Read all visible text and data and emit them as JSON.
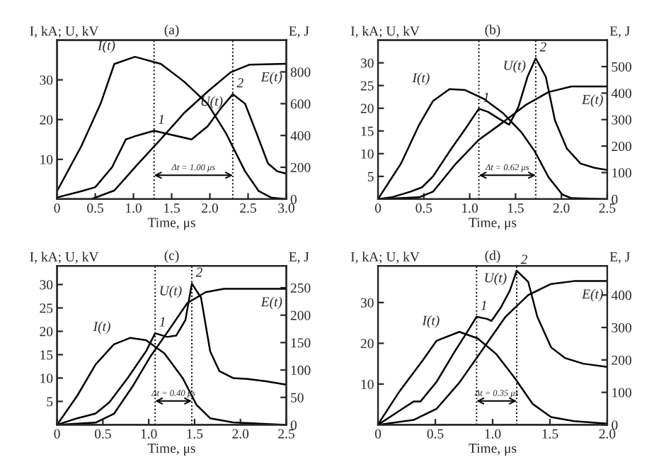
{
  "chart_data": [
    {
      "type": "line",
      "title": "(a)",
      "xlabel": "Time, μs",
      "ylabel": "I, kA; U, kV",
      "y2label": "E, J",
      "xlim": [
        0,
        3
      ],
      "xticks": [
        0,
        {
          "value": 0.5,
          "label": "0.5"
        },
        {
          "value": 1,
          "label": "1.0"
        },
        {
          "value": 1.5,
          "label": "1.5"
        },
        {
          "value": 2,
          "label": "2.0"
        },
        {
          "value": 2.5,
          "label": "2.5"
        },
        {
          "value": 3,
          "label": "3.0"
        }
      ],
      "ylim": [
        0,
        40
      ],
      "yticks": [
        10,
        20,
        30
      ],
      "y2lim": [
        0,
        1000
      ],
      "y2ticks": [
        0,
        200,
        400,
        600,
        800
      ],
      "grid": false,
      "legend": false,
      "line_style": "solid",
      "series": [
        {
          "name": "I(t)",
          "color": "#000000",
          "x": [
            0,
            0.32,
            0.57,
            0.75,
            1.02,
            1.36,
            1.66,
            1.97,
            2.21,
            2.46,
            2.64,
            2.8,
            3.0
          ],
          "values": [
            2,
            13.4,
            24,
            34,
            35.8,
            34,
            29.6,
            24,
            16.6,
            7,
            2,
            0.4,
            0
          ]
        },
        {
          "name": "U(t)",
          "color": "#000000",
          "x": [
            0,
            0.32,
            0.5,
            0.72,
            0.9,
            1.05,
            1.27,
            1.54,
            1.76,
            1.97,
            2.15,
            2.3,
            2.46,
            2.61,
            2.76,
            2.88,
            3.0
          ],
          "values": [
            0.4,
            2,
            3,
            8,
            15,
            16,
            17.2,
            16,
            15,
            18.3,
            23,
            26.4,
            24,
            16.6,
            9,
            7,
            6.4
          ]
        },
        {
          "name": "E(t)",
          "color": "#000000",
          "axis": "y2",
          "x": [
            0,
            0.45,
            0.75,
            1.05,
            1.36,
            1.66,
            1.97,
            2.27,
            2.52,
            3.0
          ],
          "values": [
            0,
            0,
            54,
            216,
            378,
            540,
            676,
            797,
            846,
            851
          ]
        }
      ],
      "ref_lines": [
        {
          "axis": "x",
          "value": 1.27,
          "line_style": "dotted",
          "color": "#000000"
        },
        {
          "axis": "x",
          "value": 2.3,
          "line_style": "dotted",
          "color": "#000000"
        }
      ],
      "annotations": [
        {
          "text": "1",
          "x": 1.27,
          "y": 17.2
        },
        {
          "text": "2",
          "x": 2.3,
          "y": 26.4
        },
        "Δt = 1.00 μs"
      ]
    },
    {
      "type": "line",
      "title": "(b)",
      "xlabel": "Time, μs",
      "ylabel": "I, kA; U, kV",
      "y2label": "E, J",
      "xlim": [
        0,
        2.5
      ],
      "xticks": [
        0,
        {
          "value": 0.5,
          "label": "0.5"
        },
        {
          "value": 1,
          "label": "1.0"
        },
        {
          "value": 1.5,
          "label": "1.5"
        },
        {
          "value": 2,
          "label": "2.0"
        },
        {
          "value": 2.5,
          "label": "2.5"
        }
      ],
      "ylim": [
        0,
        35
      ],
      "yticks": [
        5,
        10,
        15,
        20,
        25,
        30
      ],
      "y2lim": [
        0,
        600
      ],
      "y2ticks": [
        0,
        100,
        200,
        300,
        400,
        500
      ],
      "grid": false,
      "legend": false,
      "line_style": "solid",
      "series": [
        {
          "name": "I(t)",
          "color": "#000000",
          "x": [
            0,
            0.25,
            0.45,
            0.6,
            0.78,
            0.95,
            1.16,
            1.36,
            1.56,
            1.71,
            1.86,
            2.01,
            2.11,
            2.5
          ],
          "values": [
            0,
            7.8,
            16.4,
            21.6,
            24.2,
            24,
            22,
            19,
            14.8,
            10.5,
            4.8,
            1,
            0.2,
            0
          ]
        },
        {
          "name": "U(t)",
          "color": "#000000",
          "x": [
            0,
            0.15,
            0.35,
            0.48,
            0.6,
            0.8,
            0.95,
            1.1,
            1.2,
            1.31,
            1.43,
            1.53,
            1.63,
            1.72,
            1.83,
            1.93,
            2.06,
            2.21,
            2.36,
            2.5
          ],
          "values": [
            0,
            0.4,
            1.6,
            2.6,
            5,
            11.1,
            15.4,
            19.9,
            19.2,
            17.8,
            16.4,
            20.2,
            26.9,
            31,
            26.9,
            17.3,
            11.1,
            7.8,
            6.9,
            6.4
          ]
        },
        {
          "name": "E(t)",
          "color": "#000000",
          "axis": "y2",
          "x": [
            0,
            0.45,
            0.6,
            0.85,
            1.1,
            1.36,
            1.61,
            1.86,
            2.11,
            2.5
          ],
          "values": [
            0,
            7,
            28,
            134,
            224,
            289,
            355,
            404,
            425,
            425
          ]
        }
      ],
      "ref_lines": [
        {
          "axis": "x",
          "value": 1.1,
          "line_style": "dotted",
          "color": "#000000"
        },
        {
          "axis": "x",
          "value": 1.72,
          "line_style": "dotted",
          "color": "#000000"
        }
      ],
      "annotations": [
        {
          "text": "1",
          "x": 1.1,
          "y": 19.9
        },
        {
          "text": "2",
          "x": 1.72,
          "y": 31
        },
        "Δt = 0.62 μs"
      ]
    },
    {
      "type": "line",
      "title": "(c)",
      "xlabel": "Time, μs",
      "ylabel": "I, kA; U, kV",
      "y2label": "E, J",
      "xlim": [
        0,
        2.5
      ],
      "xticks": [
        0,
        {
          "value": 0.5,
          "label": "0.5"
        },
        {
          "value": 1,
          "label": "1.0"
        },
        {
          "value": 1.5,
          "label": "1.5"
        },
        {
          "value": 2,
          "label": "2.0"
        },
        {
          "value": 2.5,
          "label": "2.5"
        }
      ],
      "ylim": [
        0,
        34
      ],
      "yticks": [
        5,
        10,
        15,
        20,
        25,
        30
      ],
      "y2lim": [
        0,
        290
      ],
      "y2ticks": [
        0,
        50,
        100,
        150,
        200,
        250
      ],
      "grid": false,
      "legend": false,
      "line_style": "solid",
      "series": [
        {
          "name": "I(t)",
          "color": "#000000",
          "x": [
            0,
            0.22,
            0.42,
            0.62,
            0.8,
            0.97,
            1.17,
            1.37,
            1.52,
            1.67,
            1.92,
            2.5
          ],
          "values": [
            0,
            6.2,
            12.9,
            17.2,
            18.6,
            18.1,
            15.3,
            10,
            4.3,
            1.4,
            0.5,
            0
          ]
        },
        {
          "name": "U(t)",
          "color": "#000000",
          "x": [
            0,
            0.22,
            0.42,
            0.57,
            0.77,
            0.97,
            1.07,
            1.2,
            1.3,
            1.4,
            1.47,
            1.57,
            1.67,
            1.77,
            1.92,
            2.08,
            2.28,
            2.5
          ],
          "values": [
            0,
            1.4,
            2.4,
            4.8,
            10,
            15.7,
            19.6,
            18.8,
            19.1,
            22.4,
            30.2,
            27.2,
            15.7,
            11.5,
            10,
            9.8,
            9.3,
            8.6
          ]
        },
        {
          "name": "E(t)",
          "color": "#000000",
          "axis": "y2",
          "x": [
            0,
            0.42,
            0.62,
            0.82,
            1.02,
            1.22,
            1.42,
            1.62,
            1.82,
            2.5
          ],
          "values": [
            0,
            4,
            20,
            69,
            125,
            173,
            222,
            242,
            248,
            248
          ]
        }
      ],
      "ref_lines": [
        {
          "axis": "x",
          "value": 1.07,
          "line_style": "dotted",
          "color": "#000000"
        },
        {
          "axis": "x",
          "value": 1.47,
          "line_style": "dotted",
          "color": "#000000"
        }
      ],
      "annotations": [
        {
          "text": "1",
          "x": 1.07,
          "y": 19.6
        },
        {
          "text": "2",
          "x": 1.47,
          "y": 30.2
        },
        "Δt = 0.40 μs"
      ]
    },
    {
      "type": "line",
      "title": "(d)",
      "xlabel": "Time, μs",
      "ylabel": "I, kA; U, kV",
      "y2label": "E, J",
      "xlim": [
        0,
        2
      ],
      "xticks": [
        0,
        {
          "value": 0.5,
          "label": "0.5"
        },
        {
          "value": 1,
          "label": "1.0"
        },
        {
          "value": 1.5,
          "label": "1.5"
        },
        {
          "value": 2,
          "label": "2.0"
        }
      ],
      "ylim": [
        0,
        39
      ],
      "yticks": [
        10,
        20,
        30
      ],
      "y2lim": [
        0,
        490
      ],
      "y2ticks": [
        0,
        100,
        200,
        300,
        400
      ],
      "grid": false,
      "legend": false,
      "line_style": "solid",
      "series": [
        {
          "name": "I(t)",
          "color": "#000000",
          "x": [
            0,
            0.03,
            0.19,
            0.39,
            0.51,
            0.71,
            0.87,
            1.03,
            1.19,
            1.35,
            1.51,
            1.71,
            2.0
          ],
          "values": [
            0,
            1.4,
            8.3,
            15.8,
            20.6,
            22.8,
            21.2,
            17.4,
            11.6,
            5.1,
            1.9,
            0.9,
            0.3
          ]
        },
        {
          "name": "U(t)",
          "color": "#000000",
          "x": [
            0,
            0.19,
            0.31,
            0.37,
            0.51,
            0.67,
            0.79,
            0.86,
            0.95,
            0.99,
            1.07,
            1.15,
            1.21,
            1.31,
            1.39,
            1.51,
            1.63,
            1.79,
            2.0
          ],
          "values": [
            0,
            3.5,
            5.7,
            5.7,
            10.5,
            18,
            23.3,
            26.5,
            26,
            25.5,
            28.7,
            32.9,
            37.8,
            35.1,
            26.5,
            19,
            16.4,
            15,
            14.2
          ]
        },
        {
          "name": "E(t)",
          "color": "#000000",
          "axis": "y2",
          "x": [
            0,
            0.31,
            0.51,
            0.71,
            0.91,
            1.11,
            1.31,
            1.51,
            1.71,
            2.0
          ],
          "values": [
            0,
            15,
            49,
            130,
            231,
            332,
            400,
            434,
            443,
            443
          ]
        }
      ],
      "ref_lines": [
        {
          "axis": "x",
          "value": 0.86,
          "line_style": "dotted",
          "color": "#000000"
        },
        {
          "axis": "x",
          "value": 1.21,
          "line_style": "dotted",
          "color": "#000000"
        }
      ],
      "annotations": [
        {
          "text": "1",
          "x": 0.86,
          "y": 26.5
        },
        {
          "text": "2",
          "x": 1.21,
          "y": 37.8
        },
        "Δt = 0.35 μs"
      ]
    }
  ]
}
